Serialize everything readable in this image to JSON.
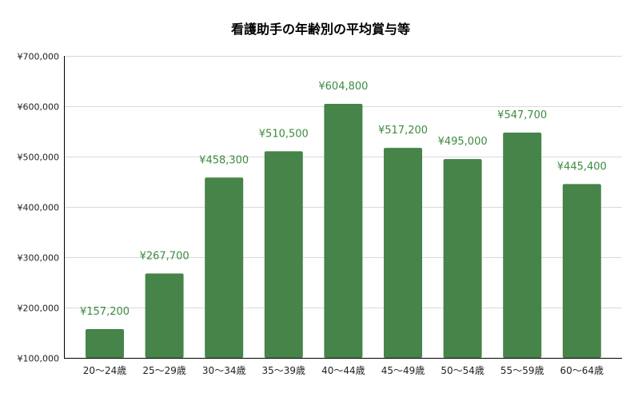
{
  "chart_data": {
    "type": "bar",
    "title": "看護助手の年齢別の平均賞与等",
    "categories": [
      "20〜24歳",
      "25〜29歳",
      "30〜34歳",
      "35〜39歳",
      "40〜44歳",
      "45〜49歳",
      "50〜54歳",
      "55〜59歳",
      "60〜64歳"
    ],
    "values": [
      157200,
      267700,
      458300,
      510500,
      604800,
      517200,
      495000,
      547700,
      445400
    ],
    "data_labels": [
      "¥157,200",
      "¥267,700",
      "¥458,300",
      "¥510,500",
      "¥604,800",
      "¥517,200",
      "¥495,000",
      "¥547,700",
      "¥445,400"
    ],
    "ylim": [
      100000,
      700000
    ],
    "yticks": [
      100000,
      200000,
      300000,
      400000,
      500000,
      600000,
      700000
    ],
    "ytick_labels": [
      "¥100,000",
      "¥200,000",
      "¥300,000",
      "¥400,000",
      "¥500,000",
      "¥600,000",
      "¥700,000"
    ],
    "xlabel": "",
    "ylabel": "",
    "grid": true,
    "legend": "none",
    "colors": {
      "bar": "#46844a",
      "label": "#3d8b40",
      "grid": "#d9d9d9",
      "axis": "#000000"
    }
  }
}
